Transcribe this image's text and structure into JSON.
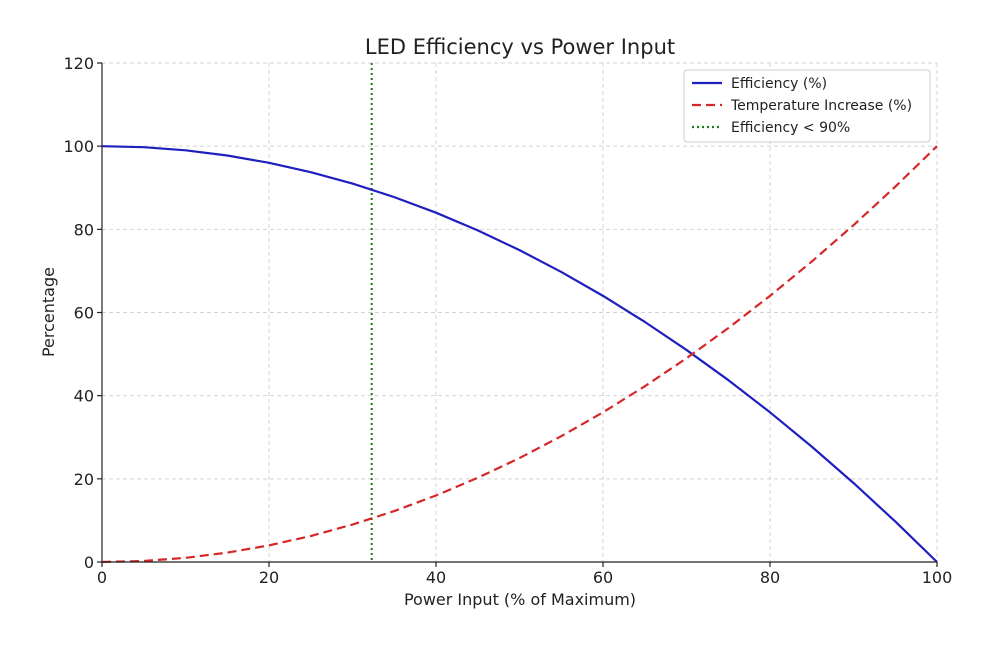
{
  "chart_data": {
    "type": "line",
    "title": "LED Efficiency vs Power Input",
    "xlabel": "Power Input (% of Maximum)",
    "ylabel": "Percentage",
    "xlim": [
      0,
      100
    ],
    "ylim": [
      0,
      120
    ],
    "x_ticks": [
      0,
      20,
      40,
      60,
      80,
      100
    ],
    "y_ticks": [
      0,
      20,
      40,
      60,
      80,
      100,
      120
    ],
    "grid": true,
    "legend_position": "top-right",
    "x": [
      0,
      5,
      10,
      15,
      20,
      25,
      30,
      35,
      40,
      45,
      50,
      55,
      60,
      65,
      70,
      75,
      80,
      85,
      90,
      95,
      100
    ],
    "series": [
      {
        "name": "Efficiency (%)",
        "color": "#1f1fbf",
        "style": "solid",
        "values": [
          100,
          99.75,
          99,
          97.75,
          96,
          93.75,
          91,
          87.75,
          84,
          79.75,
          75,
          69.75,
          64,
          57.75,
          51,
          43.75,
          36,
          27.75,
          19,
          9.75,
          0
        ]
      },
      {
        "name": "Temperature Increase (%)",
        "color": "#d62728",
        "style": "dashed",
        "values": [
          0,
          0.25,
          1,
          2.25,
          4,
          6.25,
          9,
          12.25,
          16,
          20.25,
          25,
          30.25,
          36,
          42.25,
          49,
          56.25,
          64,
          72.25,
          81,
          90.25,
          100
        ]
      }
    ],
    "vlines": [
      {
        "name": "Efficiency < 90%",
        "x": 32.3,
        "color": "#1a7a1a",
        "style": "dotted"
      }
    ]
  }
}
